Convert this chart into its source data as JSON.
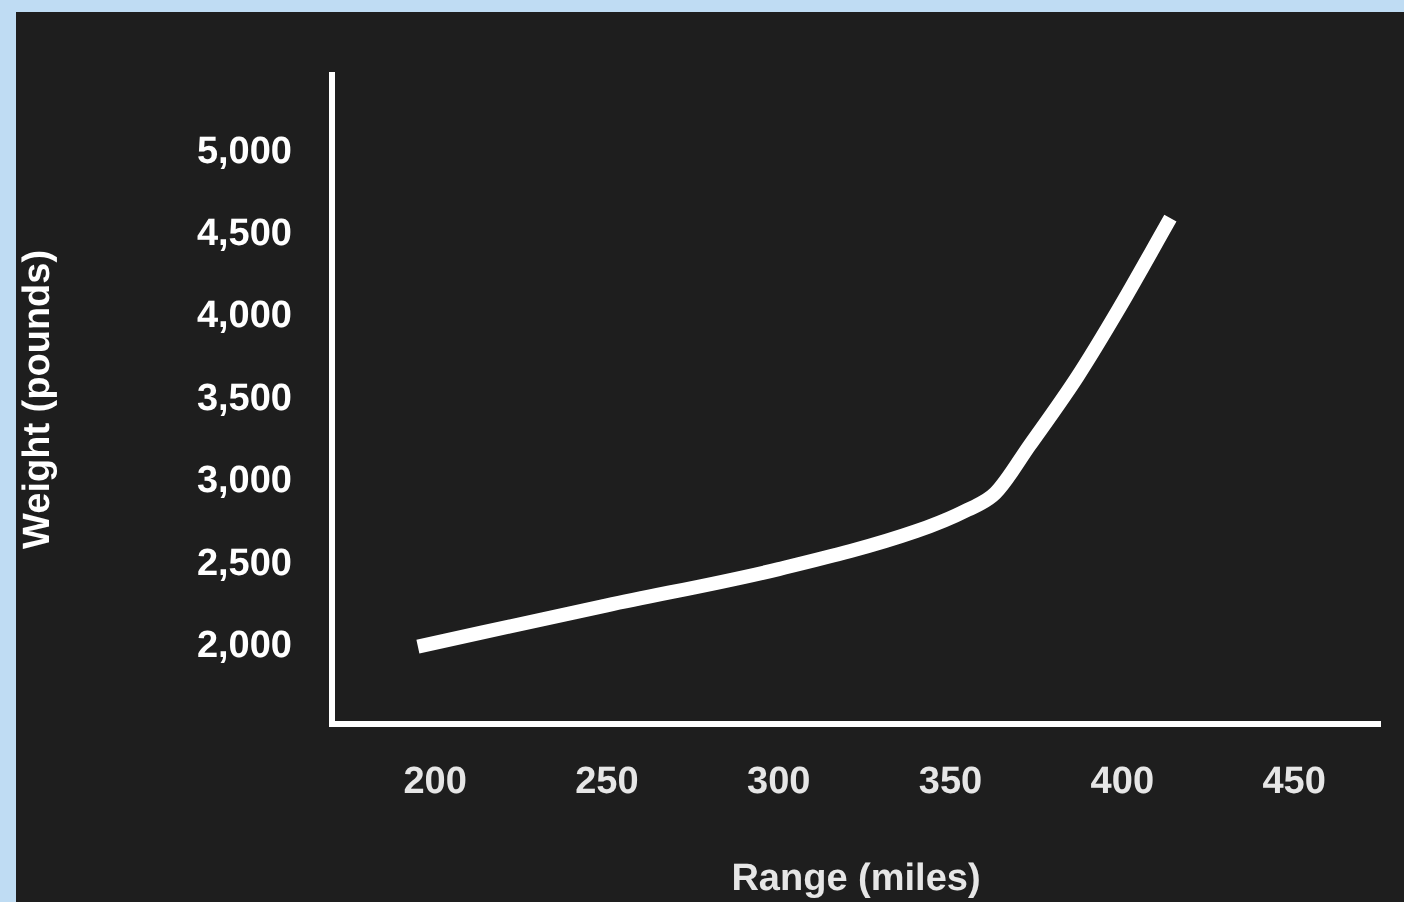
{
  "chart_data": {
    "type": "line",
    "xlabel": "Range (miles)",
    "ylabel": "Weight (pounds)",
    "x": [
      195,
      250,
      300,
      340,
      355,
      363,
      373,
      387,
      399,
      414
    ],
    "series": [
      {
        "color": "#ffffff",
        "values": [
          2000,
          2250,
          2470,
          2700,
          2830,
          2930,
          3220,
          3640,
          4050,
          4600
        ]
      }
    ],
    "xlim": [
      170,
      475
    ],
    "xticks": [
      200,
      250,
      300,
      350,
      400,
      450
    ],
    "ylim": [
      1530,
      5470
    ],
    "yticks": [
      {
        "value": 2000,
        "label": "2,000"
      },
      {
        "value": 2500,
        "label": "2,500"
      },
      {
        "value": 3000,
        "label": "3,000"
      },
      {
        "value": 3500,
        "label": "3,500"
      },
      {
        "value": 4000,
        "label": "4,000"
      },
      {
        "value": 4500,
        "label": "4,500"
      },
      {
        "value": 5000,
        "label": "5,000"
      }
    ],
    "grid": false,
    "legend": false,
    "marker": "none",
    "line_style": "solid"
  }
}
